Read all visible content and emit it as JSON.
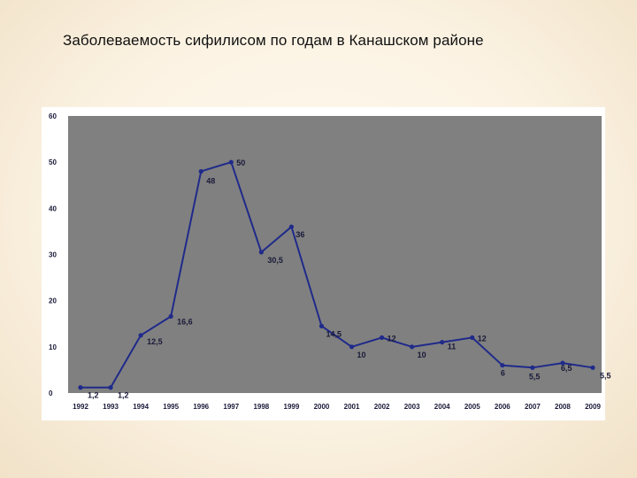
{
  "slide": {
    "title": "Заболеваемость сифилисом по годам в Канашском районе"
  },
  "colors": {
    "plot_background": "#808080",
    "series_line": "#1f2a8a",
    "frame_background": "#ffffff"
  },
  "chart_data": {
    "type": "line",
    "title": "",
    "xlabel": "",
    "ylabel": "",
    "ylim": [
      0,
      60
    ],
    "yticks": [
      "0",
      "10",
      "20",
      "30",
      "40",
      "50",
      "60"
    ],
    "grid": false,
    "legend": "none",
    "x": [
      "1992",
      "1993",
      "1994",
      "1995",
      "1996",
      "1997",
      "1998",
      "1999",
      "2000",
      "2001",
      "2002",
      "2003",
      "2004",
      "2005",
      "2006",
      "2007",
      "2008",
      "2009"
    ],
    "series": [
      {
        "values": [
          1.2,
          1.2,
          12.5,
          16.6,
          48,
          50,
          30.5,
          36,
          14.5,
          10,
          12,
          10,
          11,
          12,
          6,
          5.5,
          6.5,
          5.5
        ],
        "labels": [
          "1,2",
          "1,2",
          "12,5",
          "16,6",
          "48",
          "50",
          "30,5",
          "36",
          "14,5",
          "10",
          "12",
          "10",
          "11",
          "12",
          "6",
          "5,5",
          "6,5",
          "5,5"
        ]
      }
    ]
  }
}
